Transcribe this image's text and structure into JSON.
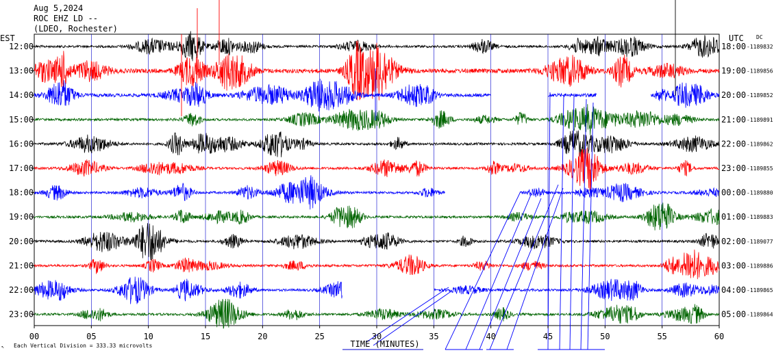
{
  "header": {
    "date": "Aug 5,2024",
    "station": "ROC EHZ LD --",
    "network": "(LDEO, Rochester)"
  },
  "left_tz_label": "EST",
  "right_tz_label": "UTC",
  "dc_label": "DC",
  "footer": {
    "scale_note": "Each Vertical Division = 333.33 microvolts",
    "corner_mark": "↖"
  },
  "colors": {
    "trace_cycle": [
      "#000000",
      "#ff0000",
      "#0000ff",
      "#006400"
    ],
    "grid": "#0000cc",
    "background": "#ffffff"
  },
  "chart_data": {
    "type": "line",
    "xlabel": "TIME (MINUTES)",
    "x_ticks": [
      "00",
      "05",
      "10",
      "15",
      "20",
      "25",
      "30",
      "35",
      "40",
      "45",
      "50",
      "55",
      "60"
    ],
    "xlim": [
      0,
      60
    ],
    "vertical_grid_step_minutes": 5,
    "rows": [
      {
        "local": "12:00",
        "utc": "18:00",
        "dc": "-1189832"
      },
      {
        "local": "13:00",
        "utc": "19:00",
        "dc": "-1189856"
      },
      {
        "local": "14:00",
        "utc": "20:00",
        "dc": "-1189852"
      },
      {
        "local": "15:00",
        "utc": "21:00",
        "dc": "-1189891"
      },
      {
        "local": "16:00",
        "utc": "22:00",
        "dc": "-1189862"
      },
      {
        "local": "17:00",
        "utc": "23:00",
        "dc": "-1189855"
      },
      {
        "local": "18:00",
        "utc": "00:00",
        "dc": "-1189880"
      },
      {
        "local": "19:00",
        "utc": "01:00",
        "dc": "-1189883"
      },
      {
        "local": "20:00",
        "utc": "02:00",
        "dc": "-1189077"
      },
      {
        "local": "21:00",
        "utc": "03:00",
        "dc": "-1189886"
      },
      {
        "local": "22:00",
        "utc": "04:00",
        "dc": "-1189865"
      },
      {
        "local": "23:00",
        "utc": "05:00",
        "dc": "-1189864"
      }
    ],
    "gaps_minutes": [
      {
        "row": 2,
        "from": 40,
        "to": 45
      },
      {
        "row": 2,
        "from": 49.3,
        "to": 54
      },
      {
        "row": 6,
        "from": 36.0,
        "to": 42.5
      },
      {
        "row": 10,
        "from": 27.0,
        "to": 35.0
      }
    ]
  }
}
